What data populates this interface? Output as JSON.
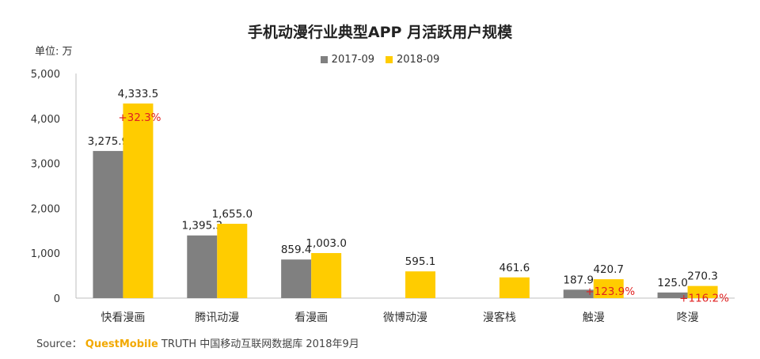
{
  "chart_data": {
    "type": "bar",
    "title": "手机动漫行业典型APP 月活跃用户规模",
    "unit_label": "单位: 万",
    "categories": [
      "快看漫画",
      "腾讯动漫",
      "看漫画",
      "微博动漫",
      "漫客栈",
      "触漫",
      "咚漫"
    ],
    "series": [
      {
        "name": "2017-09",
        "color": "#808080",
        "values": [
          3275.9,
          1395.3,
          859.4,
          null,
          null,
          187.9,
          125.0
        ],
        "labels": [
          "3,275.9",
          "1,395.3",
          "859.4",
          "",
          "",
          "187.9",
          "125.0"
        ]
      },
      {
        "name": "2018-09",
        "color": "#ffcc00",
        "values": [
          4333.5,
          1655.0,
          1003.0,
          595.1,
          461.6,
          420.7,
          270.3
        ],
        "labels": [
          "4,333.5",
          "1,655.0",
          "1,003.0",
          "595.1",
          "461.6",
          "420.7",
          "270.3"
        ]
      }
    ],
    "growth": [
      "+32.3%",
      "",
      "",
      "",
      "",
      "+123.9%",
      "+116.2%"
    ],
    "ylim": [
      0,
      5000
    ],
    "yticks": [
      0,
      1000,
      2000,
      3000,
      4000,
      5000
    ],
    "ytick_labels": [
      "0",
      "1,000",
      "2,000",
      "3,000",
      "4,000",
      "5,000"
    ],
    "grid": false,
    "legend_position": "top-center",
    "xlabel": "",
    "ylabel": ""
  },
  "source": {
    "prefix": "Source：",
    "brand": "QuestMobile",
    "rest": "TRUTH 中国移动互联网数据库 2018年9月"
  }
}
